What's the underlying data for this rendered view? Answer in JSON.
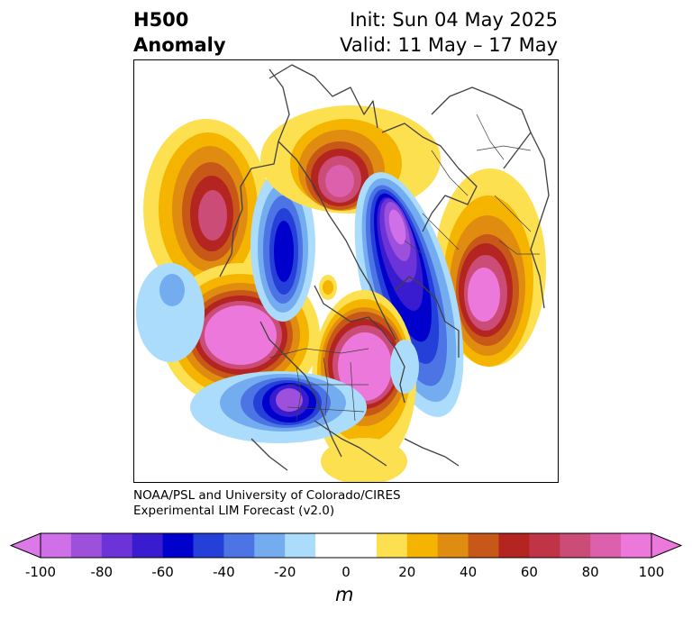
{
  "header": {
    "title_line1": "H500",
    "title_line2": "Anomaly",
    "init": "Init: Sun 04 May 2025",
    "valid": "Valid: 11 May – 17 May"
  },
  "credit": {
    "line1": "NOAA/PSL and University of Colorado/CIRES",
    "line2": "Experimental LIM Forecast (v2.0)"
  },
  "colorbar": {
    "unit": "m",
    "tick_labels": [
      "-100",
      "-80",
      "-60",
      "-40",
      "-20",
      "0",
      "20",
      "40",
      "60",
      "80",
      "100"
    ],
    "colors": [
      "#d070e8",
      "#9c50dc",
      "#6c34d8",
      "#3a1cd0",
      "#0000cc",
      "#2440d8",
      "#4c74e4",
      "#74acf0",
      "#acdcfc",
      "#ffffff",
      "#ffffff",
      "#fce050",
      "#f4b400",
      "#e08c10",
      "#c85818",
      "#b42420",
      "#c03448",
      "#cc4c78",
      "#dc60ac",
      "#ec78dc"
    ],
    "min_color": "#dc78e8",
    "max_color": "#ec78dc"
  }
}
